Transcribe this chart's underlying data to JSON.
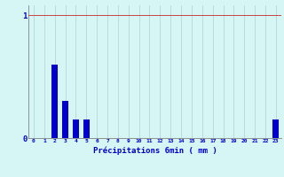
{
  "categories": [
    "0",
    "1",
    "2",
    "3",
    "4",
    "5",
    "6",
    "7",
    "8",
    "9",
    "10",
    "11",
    "12",
    "13",
    "14",
    "15",
    "16",
    "17",
    "18",
    "19",
    "20",
    "21",
    "22",
    "23"
  ],
  "values": [
    0,
    0,
    0.6,
    0.3,
    0.15,
    0.15,
    0,
    0,
    0,
    0,
    0,
    0,
    0,
    0,
    0,
    0,
    0,
    0,
    0,
    0,
    0,
    0,
    0,
    0.15
  ],
  "bar_color": "#0000cc",
  "background_color": "#d6f5f5",
  "grid_color": "#b0d8d8",
  "axis_color": "#808080",
  "text_color": "#0000cc",
  "xlabel": "Précipitations 6min ( mm )",
  "ylim": [
    0,
    1.08
  ],
  "yticks": [
    0,
    1
  ],
  "bar_width": 0.6
}
